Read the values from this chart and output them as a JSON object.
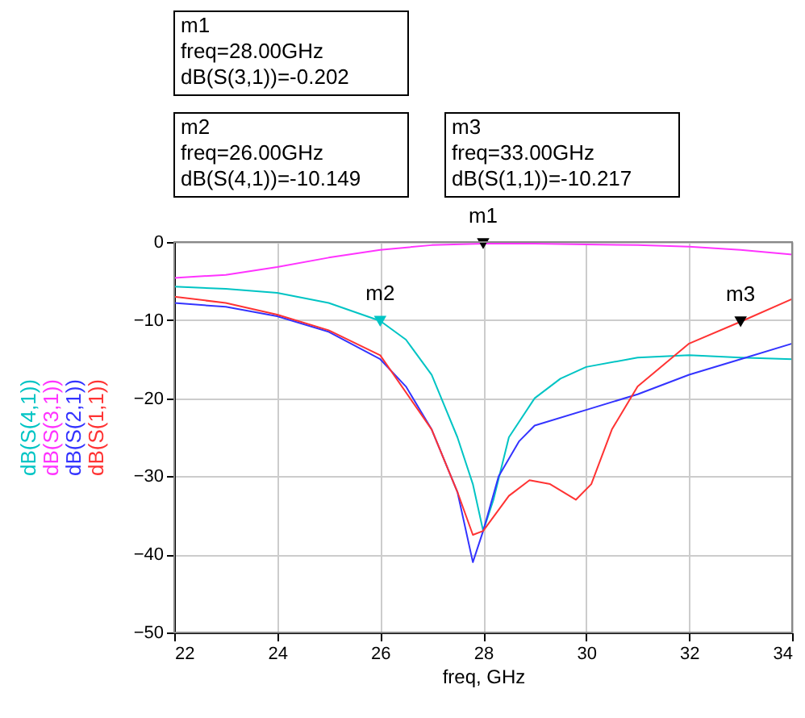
{
  "chart_data": {
    "type": "line",
    "xlabel": "freq, GHz",
    "xlim": [
      22,
      34
    ],
    "ylim": [
      -50,
      0
    ],
    "xticks": [
      22,
      24,
      26,
      28,
      30,
      32,
      34
    ],
    "yticks": [
      -50,
      -40,
      -30,
      -20,
      -10,
      0
    ],
    "grid": true,
    "legend": "left",
    "marker": "none",
    "line_style": "solid",
    "series": [
      {
        "name": "dB(S(4,1))",
        "color": "#00c4c4",
        "x": [
          22,
          23,
          24,
          25,
          26,
          26.5,
          27,
          27.5,
          27.8,
          28,
          28.2,
          28.5,
          29,
          29.5,
          30,
          31,
          32,
          33,
          34
        ],
        "values": [
          -5.7,
          -6,
          -6.5,
          -7.8,
          -10.1,
          -12.5,
          -17,
          -25,
          -31,
          -37,
          -33,
          -25,
          -20,
          -17.5,
          -16,
          -14.8,
          -14.5,
          -14.8,
          -15
        ]
      },
      {
        "name": "dB(S(3,1))",
        "color": "#ff33ff",
        "x": [
          22,
          23,
          24,
          25,
          26,
          27,
          28,
          29,
          30,
          31,
          32,
          33,
          34
        ],
        "values": [
          -4.6,
          -4.2,
          -3.2,
          -2,
          -1,
          -0.4,
          -0.2,
          -0.2,
          -0.3,
          -0.4,
          -0.6,
          -1,
          -1.6
        ]
      },
      {
        "name": "dB(S(2,1))",
        "color": "#3333ff",
        "x": [
          22,
          23,
          24,
          25,
          26,
          26.5,
          27,
          27.5,
          27.8,
          28,
          28.3,
          28.7,
          29,
          30,
          31,
          32,
          33,
          34
        ],
        "values": [
          -7.8,
          -8.3,
          -9.5,
          -11.5,
          -15,
          -18.5,
          -24,
          -32,
          -41,
          -37,
          -30,
          -25.5,
          -23.5,
          -21.5,
          -19.5,
          -17,
          -15,
          -13
        ]
      },
      {
        "name": "dB(S(1,1))",
        "color": "#ff3333",
        "x": [
          22,
          23,
          24,
          25,
          26,
          27,
          27.5,
          27.8,
          28,
          28.5,
          28.9,
          29.3,
          29.8,
          30.1,
          30.5,
          31,
          32,
          33,
          34
        ],
        "values": [
          -7,
          -7.8,
          -9.3,
          -11.3,
          -14.5,
          -24,
          -32,
          -37.5,
          -37,
          -32.5,
          -30.5,
          -31,
          -33,
          -31,
          -24,
          -18.5,
          -13,
          -10.2,
          -7.3
        ]
      },
      {
        "type": "scatter",
        "marker": "triangle",
        "colors": [
          "#000000",
          "#00c4c4",
          "#000000"
        ],
        "x": [
          28,
          26,
          33
        ],
        "values": [
          -0.202,
          -10.149,
          -10.217
        ]
      }
    ],
    "annotations": [
      "m1\nfreq=28.00GHz\ndB(S(3,1))=-0.202",
      "m2\nfreq=26.00GHz\ndB(S(4,1))=-10.149",
      "m3\nfreq=33.00GHz\ndB(S(1,1))=-10.217",
      {
        "text": "m1",
        "x": 28,
        "y": -0.202
      },
      {
        "text": "m2",
        "x": 26,
        "y": -10.149
      },
      {
        "text": "m3",
        "x": 33,
        "y": -10.217
      }
    ]
  }
}
